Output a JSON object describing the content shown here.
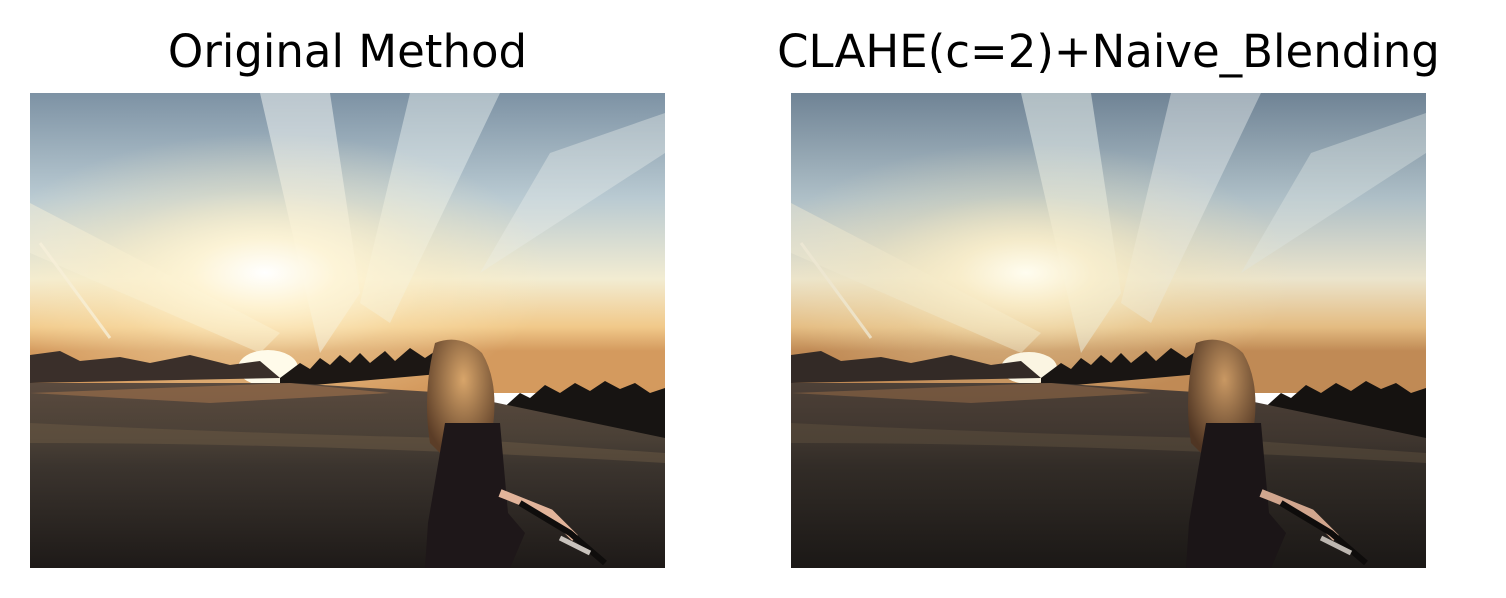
{
  "panels": [
    {
      "title": "Original Method",
      "variant": "original"
    },
    {
      "title": "CLAHE(c=2)+Naive_Blending",
      "variant": "clahe"
    }
  ],
  "colors": {
    "sky_top": "#7f93a3",
    "sky_mid": "#c9d6d8",
    "sun_glow": "#fff8e0",
    "horizon_orange": "#e89a4a",
    "field": "#3a332e",
    "ground_dark": "#1f1b19",
    "tree_silhouette": "#141210"
  }
}
